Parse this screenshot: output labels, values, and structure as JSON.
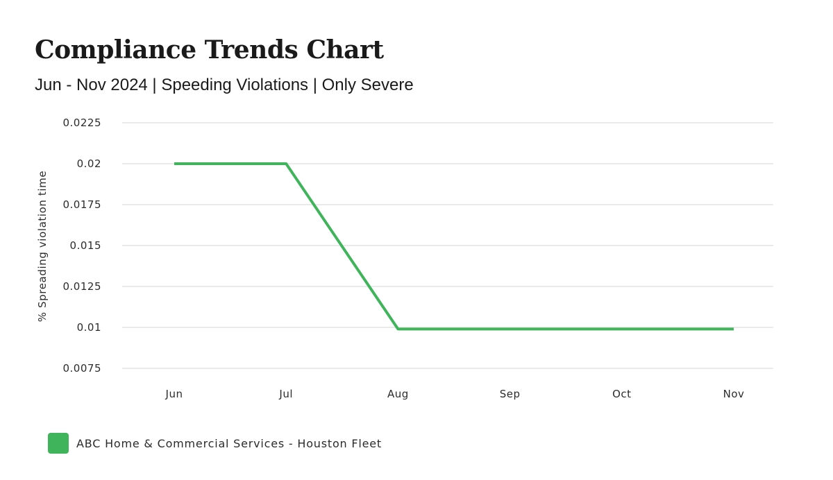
{
  "chart_data": {
    "type": "line",
    "title": "Compliance Trends Chart",
    "subtitle": "Jun - Nov 2024 | Speeding Violations | Only Severe",
    "ylabel": "% Spreading violation time",
    "xlabel": "",
    "categories": [
      "Jun",
      "Jul",
      "Aug",
      "Sep",
      "Oct",
      "Nov"
    ],
    "yticks": [
      "0.0075",
      "0.01",
      "0.0125",
      "0.015",
      "0.0175",
      "0.02",
      "0.0225"
    ],
    "ylim": [
      0.0075,
      0.0225
    ],
    "grid": true,
    "legend_position": "bottom-left",
    "series": [
      {
        "name": "ABC Home & Commercial Services - Houston Fleet",
        "color": "#3fb45a",
        "values": [
          0.02,
          0.02,
          0.0099,
          0.0099,
          0.0099,
          0.0099
        ]
      }
    ]
  }
}
